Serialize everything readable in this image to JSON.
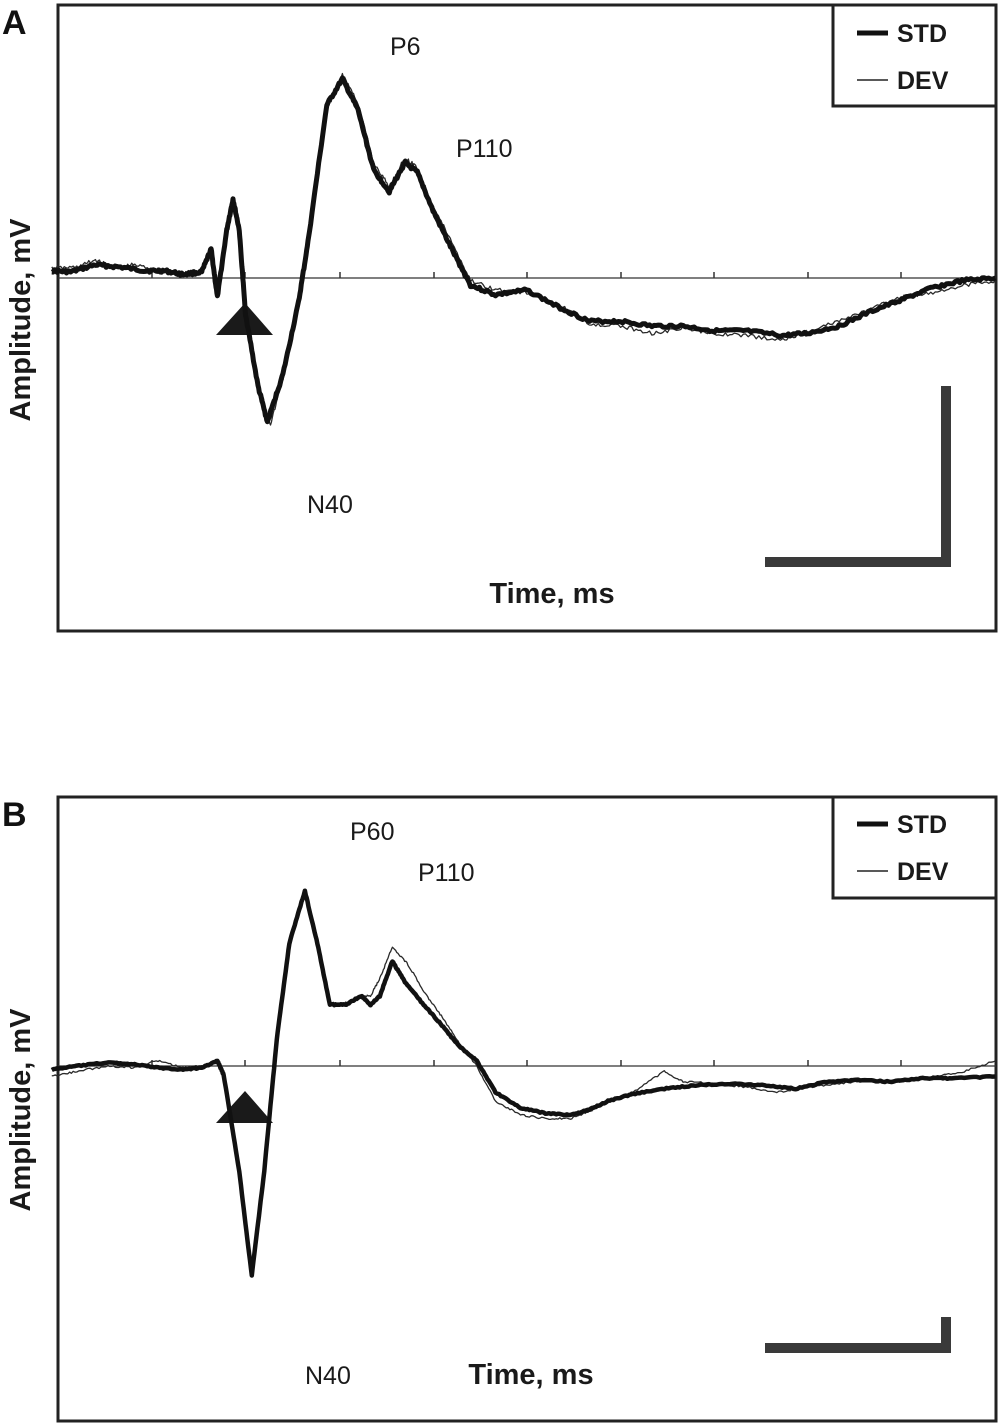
{
  "chart_data": [
    {
      "panel": "A",
      "type": "line",
      "xlabel": "Time, ms",
      "ylabel": "Amplitude, mV",
      "legend": {
        "placement": "top-right",
        "entries": [
          "STD",
          "DEV"
        ]
      },
      "peaks": [
        "P6",
        "N40",
        "P110"
      ],
      "series": [
        {
          "name": "STD",
          "style": "thick",
          "points": [
            [
              -0.1,
              0.3
            ],
            [
              0.2,
              0.25
            ],
            [
              0.6,
              0.55
            ],
            [
              1.0,
              0.45
            ],
            [
              1.4,
              0.3
            ],
            [
              1.7,
              0.3
            ],
            [
              2.0,
              0.15
            ],
            [
              2.3,
              0.25
            ],
            [
              2.45,
              1.2
            ],
            [
              2.55,
              -0.8
            ],
            [
              2.7,
              2.0
            ],
            [
              2.8,
              3.3
            ],
            [
              2.9,
              2.0
            ],
            [
              3.0,
              -1.5
            ],
            [
              3.2,
              -4.5
            ],
            [
              3.35,
              -6.0
            ],
            [
              3.6,
              -4.0
            ],
            [
              3.85,
              -1.0
            ],
            [
              4.0,
              1.5
            ],
            [
              4.3,
              7.2
            ],
            [
              4.55,
              8.3
            ],
            [
              4.8,
              7.0
            ],
            [
              5.05,
              4.5
            ],
            [
              5.3,
              3.6
            ],
            [
              5.55,
              4.8
            ],
            [
              5.75,
              4.4
            ],
            [
              6.0,
              2.8
            ],
            [
              6.3,
              1.2
            ],
            [
              6.6,
              -0.3
            ],
            [
              7.0,
              -0.7
            ],
            [
              7.5,
              -0.5
            ],
            [
              8.0,
              -1.2
            ],
            [
              8.5,
              -1.8
            ],
            [
              9.0,
              -1.8
            ],
            [
              9.5,
              -2.0
            ],
            [
              10.0,
              -2.0
            ],
            [
              10.5,
              -2.2
            ],
            [
              11.0,
              -2.2
            ],
            [
              11.6,
              -2.4
            ],
            [
              12.0,
              -2.3
            ],
            [
              12.5,
              -2.0
            ],
            [
              13.0,
              -1.4
            ],
            [
              13.5,
              -0.9
            ],
            [
              14.0,
              -0.4
            ],
            [
              14.5,
              -0.1
            ],
            [
              15.0,
              0.0
            ]
          ]
        },
        {
          "name": "DEV",
          "style": "thin",
          "points": [
            [
              -0.1,
              0.4
            ],
            [
              0.3,
              0.45
            ],
            [
              0.6,
              0.75
            ],
            [
              0.9,
              0.4
            ],
            [
              1.2,
              0.55
            ],
            [
              1.6,
              0.35
            ],
            [
              2.0,
              0.2
            ],
            [
              2.3,
              0.3
            ],
            [
              2.45,
              1.0
            ],
            [
              2.55,
              -0.6
            ],
            [
              2.7,
              1.9
            ],
            [
              2.8,
              3.2
            ],
            [
              2.9,
              2.1
            ],
            [
              3.0,
              -1.3
            ],
            [
              3.2,
              -4.3
            ],
            [
              3.4,
              -6.1
            ],
            [
              3.6,
              -4.2
            ],
            [
              3.85,
              -1.1
            ],
            [
              4.0,
              1.4
            ],
            [
              4.3,
              7.0
            ],
            [
              4.55,
              8.5
            ],
            [
              4.8,
              7.3
            ],
            [
              5.05,
              4.8
            ],
            [
              5.3,
              3.8
            ],
            [
              5.55,
              5.0
            ],
            [
              5.75,
              4.6
            ],
            [
              6.0,
              3.0
            ],
            [
              6.3,
              1.5
            ],
            [
              6.6,
              -0.1
            ],
            [
              7.0,
              -0.5
            ],
            [
              7.5,
              -0.6
            ],
            [
              8.0,
              -1.1
            ],
            [
              8.5,
              -1.9
            ],
            [
              9.0,
              -2.0
            ],
            [
              9.5,
              -2.3
            ],
            [
              10.0,
              -2.1
            ],
            [
              10.5,
              -2.3
            ],
            [
              11.0,
              -2.4
            ],
            [
              11.6,
              -2.6
            ],
            [
              12.0,
              -2.2
            ],
            [
              12.5,
              -1.8
            ],
            [
              13.0,
              -1.3
            ],
            [
              13.5,
              -0.8
            ],
            [
              14.0,
              -0.6
            ],
            [
              14.5,
              -0.3
            ],
            [
              15.0,
              -0.1
            ]
          ]
        }
      ]
    },
    {
      "panel": "B",
      "type": "line",
      "xlabel": "Time, ms",
      "ylabel": "Amplitude, mV",
      "legend": {
        "placement": "top-right",
        "entries": [
          "STD",
          "DEV"
        ]
      },
      "peaks": [
        "P60",
        "N40",
        "P110"
      ],
      "series": [
        {
          "name": "STD",
          "style": "thick",
          "points": [
            [
              -0.1,
              -0.2
            ],
            [
              0.3,
              0.0
            ],
            [
              0.8,
              0.2
            ],
            [
              1.2,
              0.1
            ],
            [
              1.6,
              -0.1
            ],
            [
              2.0,
              -0.2
            ],
            [
              2.3,
              -0.1
            ],
            [
              2.55,
              0.3
            ],
            [
              2.65,
              -0.5
            ],
            [
              2.9,
              -6.0
            ],
            [
              3.1,
              -12.0
            ],
            [
              3.3,
              -6.0
            ],
            [
              3.5,
              1.5
            ],
            [
              3.7,
              7.0
            ],
            [
              3.95,
              10.0
            ],
            [
              4.15,
              7.0
            ],
            [
              4.35,
              3.5
            ],
            [
              4.6,
              3.5
            ],
            [
              4.85,
              4.0
            ],
            [
              5.0,
              3.5
            ],
            [
              5.15,
              4.0
            ],
            [
              5.35,
              6.0
            ],
            [
              5.55,
              4.8
            ],
            [
              5.85,
              3.5
            ],
            [
              6.1,
              2.5
            ],
            [
              6.4,
              1.2
            ],
            [
              6.7,
              0.3
            ],
            [
              7.0,
              -1.5
            ],
            [
              7.4,
              -2.4
            ],
            [
              7.8,
              -2.7
            ],
            [
              8.2,
              -2.8
            ],
            [
              8.5,
              -2.5
            ],
            [
              8.8,
              -2.0
            ],
            [
              9.2,
              -1.6
            ],
            [
              9.7,
              -1.3
            ],
            [
              10.2,
              -1.1
            ],
            [
              10.8,
              -1.0
            ],
            [
              11.3,
              -1.1
            ],
            [
              11.8,
              -1.3
            ],
            [
              12.3,
              -0.9
            ],
            [
              12.8,
              -0.8
            ],
            [
              13.3,
              -0.9
            ],
            [
              13.8,
              -0.7
            ],
            [
              14.3,
              -0.7
            ],
            [
              15.0,
              -0.6
            ]
          ]
        },
        {
          "name": "DEV",
          "style": "thin",
          "points": [
            [
              -0.1,
              -0.6
            ],
            [
              0.3,
              -0.3
            ],
            [
              0.8,
              0.0
            ],
            [
              1.2,
              -0.1
            ],
            [
              1.6,
              0.3
            ],
            [
              2.0,
              -0.1
            ],
            [
              2.3,
              0.0
            ],
            [
              2.55,
              0.2
            ],
            [
              2.65,
              -0.5
            ],
            [
              2.9,
              -6.0
            ],
            [
              3.1,
              -12.0
            ],
            [
              3.3,
              -6.0
            ],
            [
              3.5,
              1.5
            ],
            [
              3.7,
              7.0
            ],
            [
              3.95,
              10.0
            ],
            [
              4.15,
              7.0
            ],
            [
              4.35,
              3.6
            ],
            [
              4.6,
              3.6
            ],
            [
              4.85,
              4.0
            ],
            [
              5.0,
              4.0
            ],
            [
              5.15,
              5.0
            ],
            [
              5.35,
              6.8
            ],
            [
              5.6,
              5.8
            ],
            [
              5.9,
              4.0
            ],
            [
              6.15,
              2.8
            ],
            [
              6.4,
              1.4
            ],
            [
              6.7,
              0.0
            ],
            [
              7.0,
              -2.0
            ],
            [
              7.4,
              -2.8
            ],
            [
              7.8,
              -3.0
            ],
            [
              8.2,
              -3.0
            ],
            [
              8.5,
              -2.6
            ],
            [
              8.8,
              -2.0
            ],
            [
              9.2,
              -1.5
            ],
            [
              9.7,
              -0.3
            ],
            [
              10.0,
              -0.9
            ],
            [
              10.5,
              -1.0
            ],
            [
              11.0,
              -1.2
            ],
            [
              11.5,
              -1.5
            ],
            [
              12.0,
              -1.2
            ],
            [
              12.5,
              -1.0
            ],
            [
              13.0,
              -0.8
            ],
            [
              13.5,
              -0.9
            ],
            [
              14.0,
              -0.6
            ],
            [
              14.5,
              -0.3
            ],
            [
              15.0,
              0.3
            ]
          ]
        }
      ]
    }
  ]
}
